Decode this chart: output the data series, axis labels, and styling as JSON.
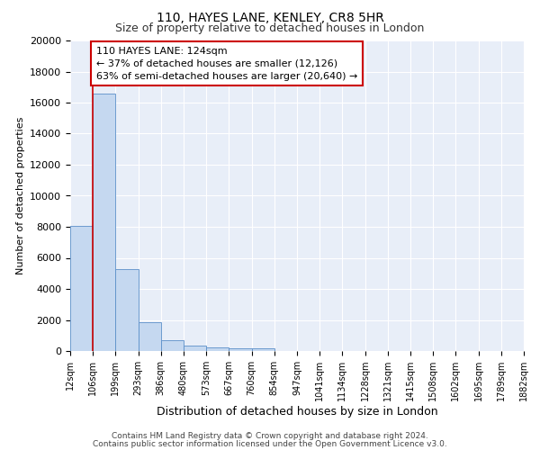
{
  "title1": "110, HAYES LANE, KENLEY, CR8 5HR",
  "title2": "Size of property relative to detached houses in London",
  "xlabel": "Distribution of detached houses by size in London",
  "ylabel": "Number of detached properties",
  "bar_values": [
    8050,
    16600,
    5300,
    1850,
    700,
    320,
    230,
    195,
    170,
    0,
    0,
    0,
    0,
    0,
    0,
    0,
    0,
    0,
    0,
    0
  ],
  "bar_color": "#c5d8f0",
  "bar_edge_color": "#5b8fc9",
  "tick_labels": [
    "12sqm",
    "106sqm",
    "199sqm",
    "293sqm",
    "386sqm",
    "480sqm",
    "573sqm",
    "667sqm",
    "760sqm",
    "854sqm",
    "947sqm",
    "1041sqm",
    "1134sqm",
    "1228sqm",
    "1321sqm",
    "1415sqm",
    "1508sqm",
    "1602sqm",
    "1695sqm",
    "1789sqm",
    "1882sqm"
  ],
  "vline_x": 1,
  "vline_color": "#cc0000",
  "annotation_line1": "110 HAYES LANE: 124sqm",
  "annotation_line2": "← 37% of detached houses are smaller (12,126)",
  "annotation_line3": "63% of semi-detached houses are larger (20,640) →",
  "annotation_box_color": "#ffffff",
  "annotation_box_edge": "#cc0000",
  "ylim": [
    0,
    20000
  ],
  "yticks": [
    0,
    2000,
    4000,
    6000,
    8000,
    10000,
    12000,
    14000,
    16000,
    18000,
    20000
  ],
  "bg_color": "#e8eef8",
  "grid_color": "#ffffff",
  "footer_line1": "Contains HM Land Registry data © Crown copyright and database right 2024.",
  "footer_line2": "Contains public sector information licensed under the Open Government Licence v3.0.",
  "title1_fontsize": 10,
  "title2_fontsize": 9,
  "xlabel_fontsize": 9,
  "ylabel_fontsize": 8,
  "tick_fontsize": 7,
  "ytick_fontsize": 8,
  "annotation_fontsize": 8,
  "footer_fontsize": 6.5
}
